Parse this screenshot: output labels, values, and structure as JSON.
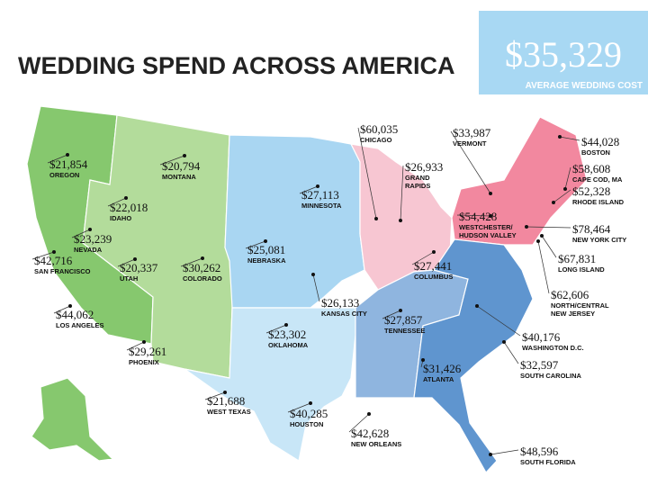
{
  "header": {
    "title": "WEDDING SPEND ACROSS AMERICA",
    "average_amount": "$35,329",
    "average_label": "AVERAGE WEDDING COST"
  },
  "labels": [
    {
      "amount": "$21,854",
      "place": [
        "OREGON"
      ]
    },
    {
      "amount": "$20,794",
      "place": [
        "MONTANA"
      ]
    },
    {
      "amount": "$22,018",
      "place": [
        "IDAHO"
      ]
    },
    {
      "amount": "$23,239",
      "place": [
        "NEVADA"
      ]
    },
    {
      "amount": "$42,716",
      "place": [
        "SAN FRANCISCO"
      ]
    },
    {
      "amount": "$20,337",
      "place": [
        "UTAH"
      ]
    },
    {
      "amount": "$30,262",
      "place": [
        "COLORADO"
      ]
    },
    {
      "amount": "$44,062",
      "place": [
        "LOS ANGELES"
      ]
    },
    {
      "amount": "$29,261",
      "place": [
        "PHOENIX"
      ]
    },
    {
      "amount": "$25,081",
      "place": [
        "NEBRASKA"
      ]
    },
    {
      "amount": "$27,113",
      "place": [
        "MINNESOTA"
      ]
    },
    {
      "amount": "$23,302",
      "place": [
        "OKLAHOMA"
      ]
    },
    {
      "amount": "$26,133",
      "place": [
        "KANSAS CITY"
      ]
    },
    {
      "amount": "$21,688",
      "place": [
        "WEST TEXAS"
      ]
    },
    {
      "amount": "$40,285",
      "place": [
        "HOUSTON"
      ]
    },
    {
      "amount": "$42,628",
      "place": [
        "NEW ORLEANS"
      ]
    },
    {
      "amount": "$27,857",
      "place": [
        "TENNESSEE"
      ]
    },
    {
      "amount": "$27,441",
      "place": [
        "COLUMBUS"
      ]
    },
    {
      "amount": "$31,426",
      "place": [
        "ATLANTA"
      ]
    },
    {
      "amount": "$60,035",
      "place": [
        "CHICAGO"
      ]
    },
    {
      "amount": "$26,933",
      "place": [
        "GRAND",
        "RAPIDS"
      ]
    },
    {
      "amount": "$33,987",
      "place": [
        "VERMONT"
      ]
    },
    {
      "amount": "$54,428",
      "place": [
        "WESTCHESTER/",
        "HUDSON VALLEY"
      ]
    },
    {
      "amount": "$44,028",
      "place": [
        "BOSTON"
      ]
    },
    {
      "amount": "$58,608",
      "place": [
        "CAPE COD, MA"
      ]
    },
    {
      "amount": "$52,328",
      "place": [
        "RHODE ISLAND"
      ]
    },
    {
      "amount": "$78,464",
      "place": [
        "NEW YORK CITY"
      ]
    },
    {
      "amount": "$67,831",
      "place": [
        "LONG ISLAND"
      ]
    },
    {
      "amount": "$62,606",
      "place": [
        "NORTH/CENTRAL",
        "NEW JERSEY"
      ]
    },
    {
      "amount": "$40,176",
      "place": [
        "WASHINGTON D.C."
      ]
    },
    {
      "amount": "$32,597",
      "place": [
        "SOUTH CAROLINA"
      ]
    },
    {
      "amount": "$48,596",
      "place": [
        "SOUTH FLORIDA"
      ]
    }
  ]
}
